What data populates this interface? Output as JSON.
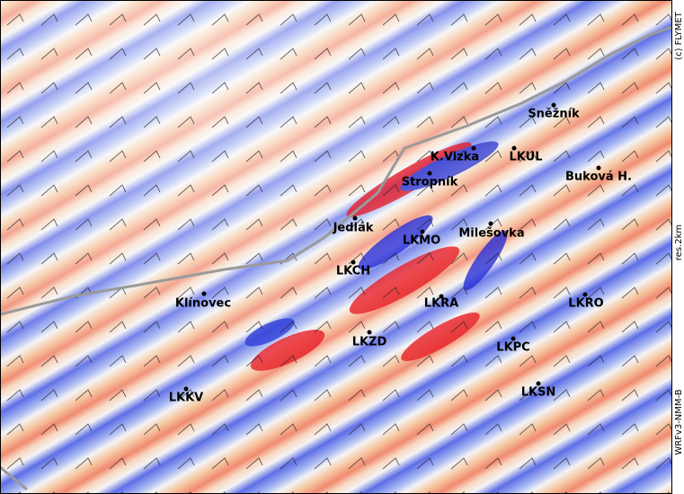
{
  "map": {
    "side_labels": [
      "(c) FLYMET",
      "res.2km",
      "WRFv3-NMM-B"
    ],
    "stations": [
      {
        "label": "Sněžník"
      },
      {
        "label": "K.Vizka"
      },
      {
        "label": "LKUL"
      },
      {
        "label": "Stropník"
      },
      {
        "label": "Buková H."
      },
      {
        "label": "Jedlák"
      },
      {
        "label": "LKMO"
      },
      {
        "label": "Milešovka"
      },
      {
        "label": "LKCH"
      },
      {
        "label": "Klínovec"
      },
      {
        "label": "LKRA"
      },
      {
        "label": "LKRO"
      },
      {
        "label": "LKZD"
      },
      {
        "label": "LKPC"
      },
      {
        "label": "LKSN"
      },
      {
        "label": "LKKV"
      }
    ]
  }
}
